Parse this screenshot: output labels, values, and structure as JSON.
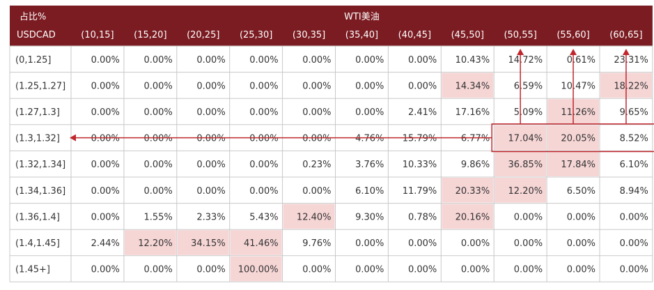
{
  "colors": {
    "header_bg": "#7b1c22",
    "highlight_bg": "#f6d5d5",
    "arrow": "#c0272d",
    "grid_line": "#c8c8c8"
  },
  "chart_data": {
    "type": "table",
    "corner_top": "占比%",
    "corner_bottom": "USDCAD",
    "column_group": "WTI美油",
    "columns": [
      "(10,15]",
      "(15,20]",
      "(20,25]",
      "(25,30]",
      "(30,35]",
      "(35,40]",
      "(40,45]",
      "(45,50]",
      "(50,55]",
      "(55,60]",
      "(60,65]"
    ],
    "rows": [
      {
        "label": "(0,1.25]",
        "values": [
          "0.00%",
          "0.00%",
          "0.00%",
          "0.00%",
          "0.00%",
          "0.00%",
          "0.00%",
          "10.43%",
          "14.72%",
          "0.61%",
          "23.31%"
        ],
        "highlight": []
      },
      {
        "label": "(1.25,1.27]",
        "values": [
          "0.00%",
          "0.00%",
          "0.00%",
          "0.00%",
          "0.00%",
          "0.00%",
          "0.00%",
          "14.34%",
          "6.59%",
          "10.47%",
          "18.22%"
        ],
        "highlight": [
          7,
          10
        ]
      },
      {
        "label": "(1.27,1.3]",
        "values": [
          "0.00%",
          "0.00%",
          "0.00%",
          "0.00%",
          "0.00%",
          "0.00%",
          "2.41%",
          "17.16%",
          "5.09%",
          "11.26%",
          "9.65%"
        ],
        "highlight": [
          9
        ]
      },
      {
        "label": "(1.3,1.32]",
        "values": [
          "0.00%",
          "0.00%",
          "0.00%",
          "0.00%",
          "0.00%",
          "4.76%",
          "15.79%",
          "6.77%",
          "17.04%",
          "20.05%",
          "8.52%"
        ],
        "highlight": [
          8,
          9
        ]
      },
      {
        "label": "(1.32,1.34]",
        "values": [
          "0.00%",
          "0.00%",
          "0.00%",
          "0.00%",
          "0.23%",
          "3.76%",
          "10.33%",
          "9.86%",
          "36.85%",
          "17.84%",
          "6.10%"
        ],
        "highlight": [
          8,
          9
        ]
      },
      {
        "label": "(1.34,1.36]",
        "values": [
          "0.00%",
          "0.00%",
          "0.00%",
          "0.00%",
          "0.00%",
          "6.10%",
          "11.79%",
          "20.33%",
          "12.20%",
          "6.50%",
          "8.94%"
        ],
        "highlight": [
          7,
          8
        ]
      },
      {
        "label": "(1.36,1.4]",
        "values": [
          "0.00%",
          "1.55%",
          "2.33%",
          "5.43%",
          "12.40%",
          "9.30%",
          "0.78%",
          "20.16%",
          "0.00%",
          "0.00%",
          "0.00%"
        ],
        "highlight": [
          4,
          7
        ]
      },
      {
        "label": "(1.4,1.45]",
        "values": [
          "2.44%",
          "12.20%",
          "34.15%",
          "41.46%",
          "9.76%",
          "0.00%",
          "0.00%",
          "0.00%",
          "0.00%",
          "0.00%",
          "0.00%"
        ],
        "highlight": [
          1,
          2,
          3
        ]
      },
      {
        "label": "(1.45+]",
        "values": [
          "0.00%",
          "0.00%",
          "0.00%",
          "100.00%",
          "0.00%",
          "0.00%",
          "0.00%",
          "0.00%",
          "0.00%",
          "0.00%",
          "0.00%"
        ],
        "highlight": [
          3
        ]
      }
    ],
    "annotations": {
      "box_row": 3,
      "box_columns": [
        8,
        10
      ],
      "up_arrow_columns": [
        8,
        9,
        10
      ],
      "left_arrow_row": 3
    }
  }
}
